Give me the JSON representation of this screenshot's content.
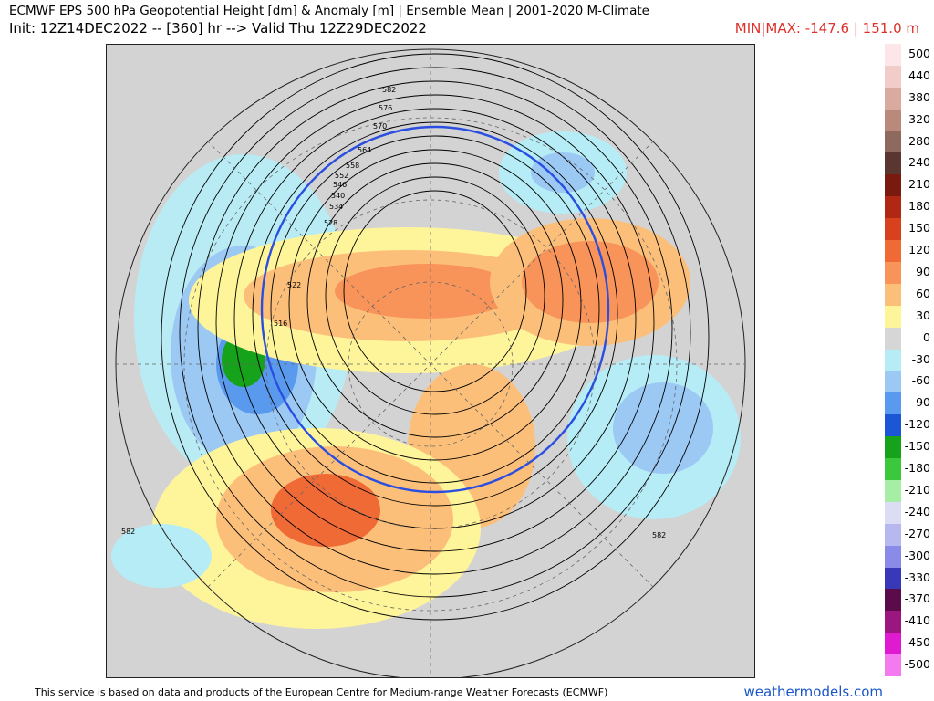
{
  "header": {
    "title": "ECMWF EPS 500 hPa Geopotential Height [dm] & Anomaly [m] | Ensemble Mean | 2001-2020 M-Climate",
    "subtitle": "Init: 12Z14DEC2022 -- [360] hr --> Valid Thu 12Z29DEC2022",
    "minmax": "MIN|MAX: -147.6 | 151.0 m"
  },
  "legend": {
    "items": [
      {
        "label": "500",
        "color": "#fde6e8"
      },
      {
        "label": "440",
        "color": "#f2ccc8"
      },
      {
        "label": "380",
        "color": "#d9aaa0"
      },
      {
        "label": "320",
        "color": "#b98a7c"
      },
      {
        "label": "280",
        "color": "#8e6a5e"
      },
      {
        "label": "240",
        "color": "#5a3630"
      },
      {
        "label": "210",
        "color": "#7a1a0e"
      },
      {
        "label": "180",
        "color": "#b02814"
      },
      {
        "label": "150",
        "color": "#d8401e"
      },
      {
        "label": "120",
        "color": "#f06a36"
      },
      {
        "label": "90",
        "color": "#f8945a"
      },
      {
        "label": "60",
        "color": "#fcbf7a"
      },
      {
        "label": "30",
        "color": "#fef59a"
      },
      {
        "label": "0",
        "color": "#d6d6d6"
      },
      {
        "label": "-30",
        "color": "#b6ecf6"
      },
      {
        "label": "-60",
        "color": "#9cc8f4"
      },
      {
        "label": "-90",
        "color": "#5a9aee"
      },
      {
        "label": "-120",
        "color": "#1a56d6"
      },
      {
        "label": "-150",
        "color": "#16a21a"
      },
      {
        "label": "-180",
        "color": "#3cc83c"
      },
      {
        "label": "-210",
        "color": "#a6eea6"
      },
      {
        "label": "-240",
        "color": "#dcdcf4"
      },
      {
        "label": "-270",
        "color": "#b8b8f0"
      },
      {
        "label": "-300",
        "color": "#8a8ae8"
      },
      {
        "label": "-330",
        "color": "#3838b8"
      },
      {
        "label": "-370",
        "color": "#5a0c4a"
      },
      {
        "label": "-410",
        "color": "#9c1680"
      },
      {
        "label": "-450",
        "color": "#e01ad0"
      },
      {
        "label": "-500",
        "color": "#f47af0"
      }
    ]
  },
  "map": {
    "contour_labels": [
      "582",
      "576",
      "570",
      "564",
      "558",
      "552",
      "546",
      "540",
      "534",
      "528",
      "522",
      "516",
      "582",
      "582"
    ]
  },
  "footer": {
    "credit": "This service is based on data and products of the European Centre for Medium-range Weather Forecasts (ECMWF)",
    "brand": "weathermodels.com"
  }
}
